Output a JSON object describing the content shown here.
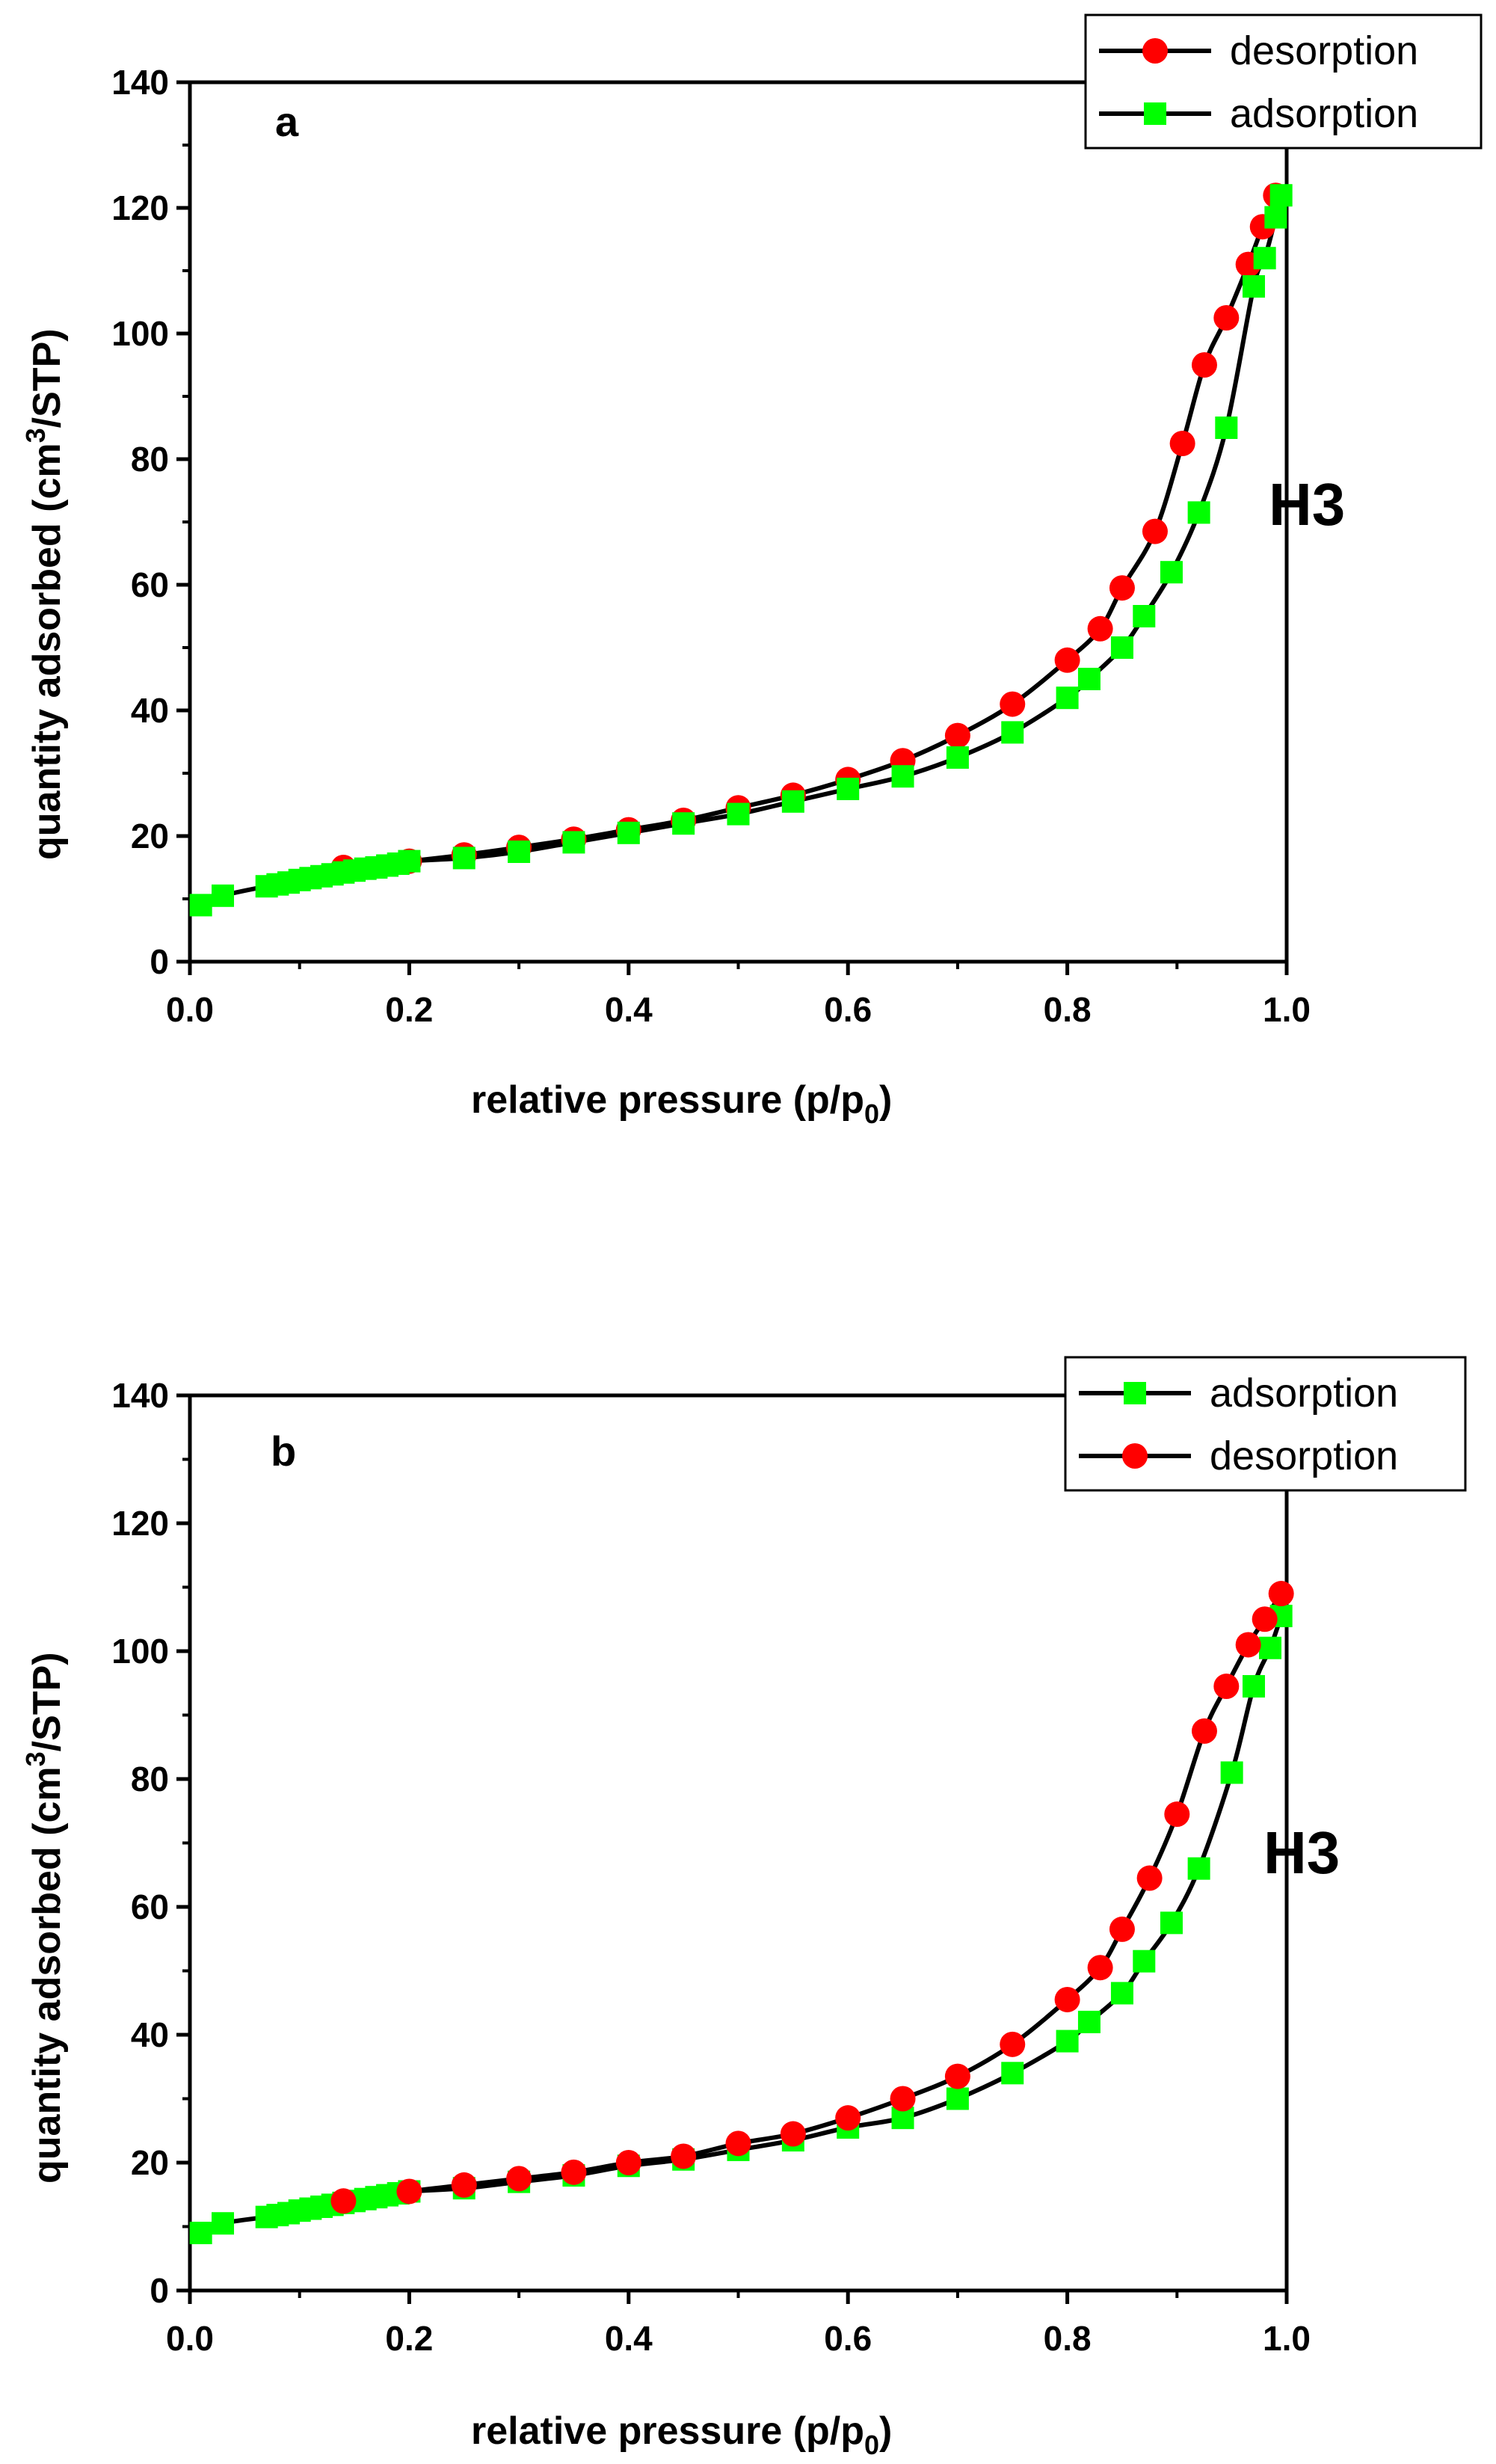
{
  "colors": {
    "desorption": "#ff0000",
    "adsorption": "#00ff00",
    "line": "#000000"
  },
  "chart_data": [
    {
      "type": "line",
      "panel_label": "a",
      "annotation": "H3",
      "xlabel": "relative pressure (p/p",
      "xlabel_sub": "0",
      "xlabel_end": ")",
      "ylabel": "quantity adsorbed (cm",
      "ylabel_sup": "3",
      "ylabel_end": "/STP)",
      "xlim": [
        0.0,
        1.0
      ],
      "ylim": [
        0,
        140
      ],
      "xticks": [
        "0.0",
        "0.2",
        "0.4",
        "0.6",
        "0.8",
        "1.0"
      ],
      "yticks": [
        "0",
        "20",
        "40",
        "60",
        "80",
        "100",
        "120",
        "140"
      ],
      "legend_position": "top-right",
      "legend_order": [
        "desorption",
        "adsorption"
      ],
      "series": [
        {
          "name": "desorption",
          "marker": "circle",
          "x": [
            0.14,
            0.2,
            0.25,
            0.3,
            0.35,
            0.4,
            0.45,
            0.5,
            0.55,
            0.6,
            0.65,
            0.7,
            0.75,
            0.8,
            0.83,
            0.85,
            0.88,
            0.905,
            0.925,
            0.945,
            0.965,
            0.978,
            0.99
          ],
          "y": [
            15,
            16,
            17,
            18.2,
            19.5,
            21,
            22.5,
            24.5,
            26.5,
            29,
            32,
            36,
            41,
            48,
            53,
            59.5,
            68.5,
            82.5,
            95,
            102.5,
            111,
            117,
            122
          ]
        },
        {
          "name": "adsorption",
          "marker": "square",
          "x": [
            0.01,
            0.03,
            0.07,
            0.08,
            0.09,
            0.1,
            0.11,
            0.12,
            0.13,
            0.14,
            0.15,
            0.16,
            0.17,
            0.18,
            0.19,
            0.2,
            0.25,
            0.3,
            0.35,
            0.4,
            0.45,
            0.5,
            0.55,
            0.6,
            0.65,
            0.7,
            0.75,
            0.8,
            0.82,
            0.85,
            0.87,
            0.895,
            0.92,
            0.945,
            0.97,
            0.98,
            0.99,
            0.995
          ],
          "y": [
            9,
            10.5,
            12,
            12.3,
            12.6,
            13,
            13.3,
            13.6,
            13.9,
            14.2,
            14.5,
            14.8,
            15,
            15.3,
            15.6,
            16,
            16.5,
            17.5,
            19,
            20.5,
            22,
            23.5,
            25.5,
            27.5,
            29.5,
            32.5,
            36.5,
            42,
            45,
            50,
            55,
            62,
            71.5,
            85,
            107.5,
            112,
            118.5,
            122
          ]
        }
      ]
    },
    {
      "type": "line",
      "panel_label": "b",
      "annotation": "H3",
      "xlabel": "relative pressure (p/p",
      "xlabel_sub": "0",
      "xlabel_end": ")",
      "ylabel": "quantity adsorbed (cm",
      "ylabel_sup": "3",
      "ylabel_end": "/STP)",
      "xlim": [
        0.0,
        1.0
      ],
      "ylim": [
        0,
        140
      ],
      "xticks": [
        "0.0",
        "0.2",
        "0.4",
        "0.6",
        "0.8",
        "1.0"
      ],
      "yticks": [
        "0",
        "20",
        "40",
        "60",
        "80",
        "100",
        "120",
        "140"
      ],
      "legend_position": "top-right",
      "legend_order": [
        "adsorption",
        "desorption"
      ],
      "series": [
        {
          "name": "adsorption",
          "marker": "square",
          "x": [
            0.01,
            0.03,
            0.07,
            0.08,
            0.09,
            0.1,
            0.11,
            0.12,
            0.13,
            0.14,
            0.15,
            0.16,
            0.17,
            0.18,
            0.19,
            0.2,
            0.25,
            0.3,
            0.35,
            0.4,
            0.45,
            0.5,
            0.55,
            0.6,
            0.65,
            0.7,
            0.75,
            0.8,
            0.82,
            0.85,
            0.87,
            0.895,
            0.92,
            0.95,
            0.97,
            0.985,
            0.995
          ],
          "y": [
            9,
            10.5,
            11.5,
            11.8,
            12.1,
            12.5,
            12.8,
            13.1,
            13.4,
            13.7,
            14,
            14.3,
            14.6,
            14.9,
            15.2,
            15.5,
            16,
            17,
            18,
            19.5,
            20.5,
            22,
            23.5,
            25.5,
            27,
            30,
            34,
            39,
            42,
            46.5,
            51.5,
            57.5,
            66,
            81,
            94.5,
            100.5,
            105.5
          ]
        },
        {
          "name": "desorption",
          "marker": "circle",
          "x": [
            0.14,
            0.2,
            0.25,
            0.3,
            0.35,
            0.4,
            0.45,
            0.5,
            0.55,
            0.6,
            0.65,
            0.7,
            0.75,
            0.8,
            0.83,
            0.85,
            0.875,
            0.9,
            0.925,
            0.945,
            0.965,
            0.98,
            0.995
          ],
          "y": [
            14,
            15.5,
            16.5,
            17.5,
            18.5,
            20,
            21,
            23,
            24.5,
            27,
            30,
            33.5,
            38.5,
            45.5,
            50.5,
            56.5,
            64.5,
            74.5,
            87.5,
            94.5,
            101,
            105,
            109
          ]
        }
      ]
    }
  ]
}
